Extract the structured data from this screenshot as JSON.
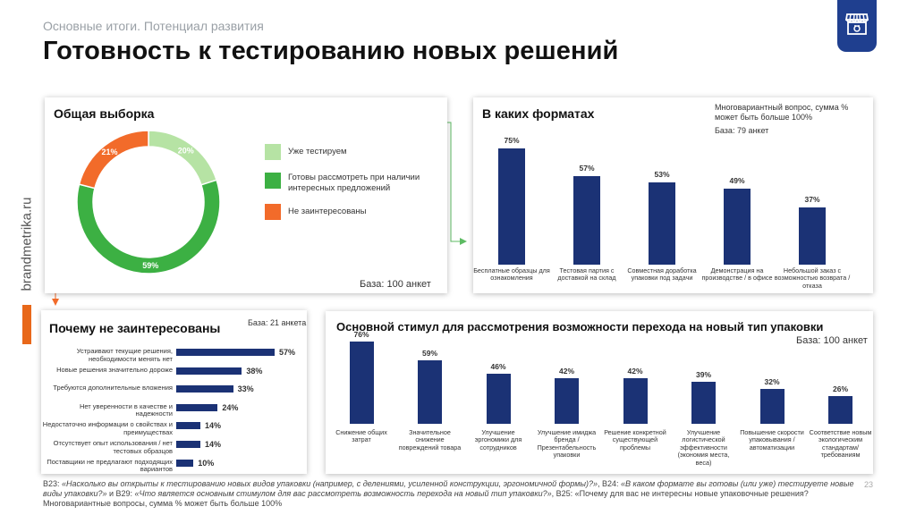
{
  "header": {
    "subtitle": "Основные итоги. Потенциал развития",
    "title": "Готовность к тестированию новых решений"
  },
  "side_brand": "brandmetrika.ru",
  "page_number": "23",
  "colors": {
    "navy": "#1b3275",
    "green": "#3cb043",
    "light_green": "#b6e3a4",
    "orange": "#f26b2a",
    "arrow_green": "#5dbb63"
  },
  "overall": {
    "title": "Общая выборка",
    "base": "База: 100 анкет",
    "legend": [
      "Уже тестируем",
      "Готовы рассмотреть при наличии интересных предложений",
      "Не заинтересованы"
    ]
  },
  "formats": {
    "title": "В каких форматах",
    "note": "Многовариантный вопрос, сумма % может быть больше 100%",
    "base": "База: 79 анкет"
  },
  "not_interested": {
    "title": "Почему не заинтересованы",
    "base": "База: 21 анкета"
  },
  "stimulus": {
    "title": "Основной стимул для рассмотрения возможности перехода на новый тип упаковки",
    "base": "База: 100 анкет"
  },
  "footnote": {
    "q1": "B23:",
    "q1_text": "«Насколько вы открыты к тестированию новых видов упаковки (например, с делениями, усиленной конструкции, эргономичной формы)?»",
    "q2": ", B24:",
    "q2_text": "«В каком формате вы готовы (или уже) тестируете новые виды упаковки?»",
    "q3": " и B29:",
    "q3_text": "«Что является основным стимулом для вас рассмотреть возможность перехода на новый тип упаковки?»",
    "q4": ", B25: «Почему для вас не интересны новые упаковочные решения? Многовариантные вопросы, сумма % может быть больше 100%"
  },
  "chart_data": [
    {
      "type": "pie",
      "title": "Общая выборка",
      "categories": [
        "Уже тестируем",
        "Готовы рассмотреть при наличии интересных предложений",
        "Не заинтересованы"
      ],
      "values": [
        20,
        59,
        21
      ],
      "labels": [
        "20%",
        "59%",
        "21%"
      ],
      "colors": [
        "#b6e3a4",
        "#3cb043",
        "#f26b2a"
      ]
    },
    {
      "type": "bar",
      "title": "В каких форматах",
      "categories": [
        "Бесплатные образцы для ознакомления",
        "Тестовая партия с доставкой на склад",
        "Совместная доработка упаковки под задачи",
        "Демонстрация на производстве / в офисе",
        "Небольшой заказ с возможностью возврата / отказа"
      ],
      "values": [
        75,
        57,
        53,
        49,
        37
      ],
      "labels": [
        "75%",
        "57%",
        "53%",
        "49%",
        "37%"
      ],
      "ylim": [
        0,
        100
      ]
    },
    {
      "type": "bar",
      "orientation": "horizontal",
      "title": "Почему не заинтересованы",
      "categories": [
        "Устраивают текущие решения, необходимости менять нет",
        "Новые решения значительно дороже",
        "Требуются дополнительные вложения",
        "Нет уверенности в качестве и надежности",
        "Недостаточно информации о свойствах и преимуществах",
        "Отсутствует опыт использования / нет тестовых образцов",
        "Поставщики не предлагают подходящих вариантов"
      ],
      "values": [
        57,
        38,
        33,
        24,
        14,
        14,
        10
      ],
      "labels": [
        "57%",
        "38%",
        "33%",
        "24%",
        "14%",
        "14%",
        "10%"
      ],
      "xlim": [
        0,
        100
      ]
    },
    {
      "type": "bar",
      "title": "Основной стимул для рассмотрения возможности перехода на новый тип упаковки",
      "categories": [
        "Снижение общих затрат",
        "Значительное снижение повреждений товара",
        "Улучшение эргономики для сотрудников",
        "Улучшение имиджа бренда / Презентабельность упаковки",
        "Решение конкретной существующей проблемы",
        "Улучшение логистической эффективности (экономия места, веса)",
        "Повышение скорости упаковывания / автоматизации",
        "Соответствие новым экологическим стандартам/требованиям"
      ],
      "values": [
        76,
        59,
        46,
        42,
        42,
        39,
        32,
        26
      ],
      "labels": [
        "76%",
        "59%",
        "46%",
        "42%",
        "42%",
        "39%",
        "32%",
        "26%"
      ],
      "ylim": [
        0,
        100
      ]
    }
  ]
}
